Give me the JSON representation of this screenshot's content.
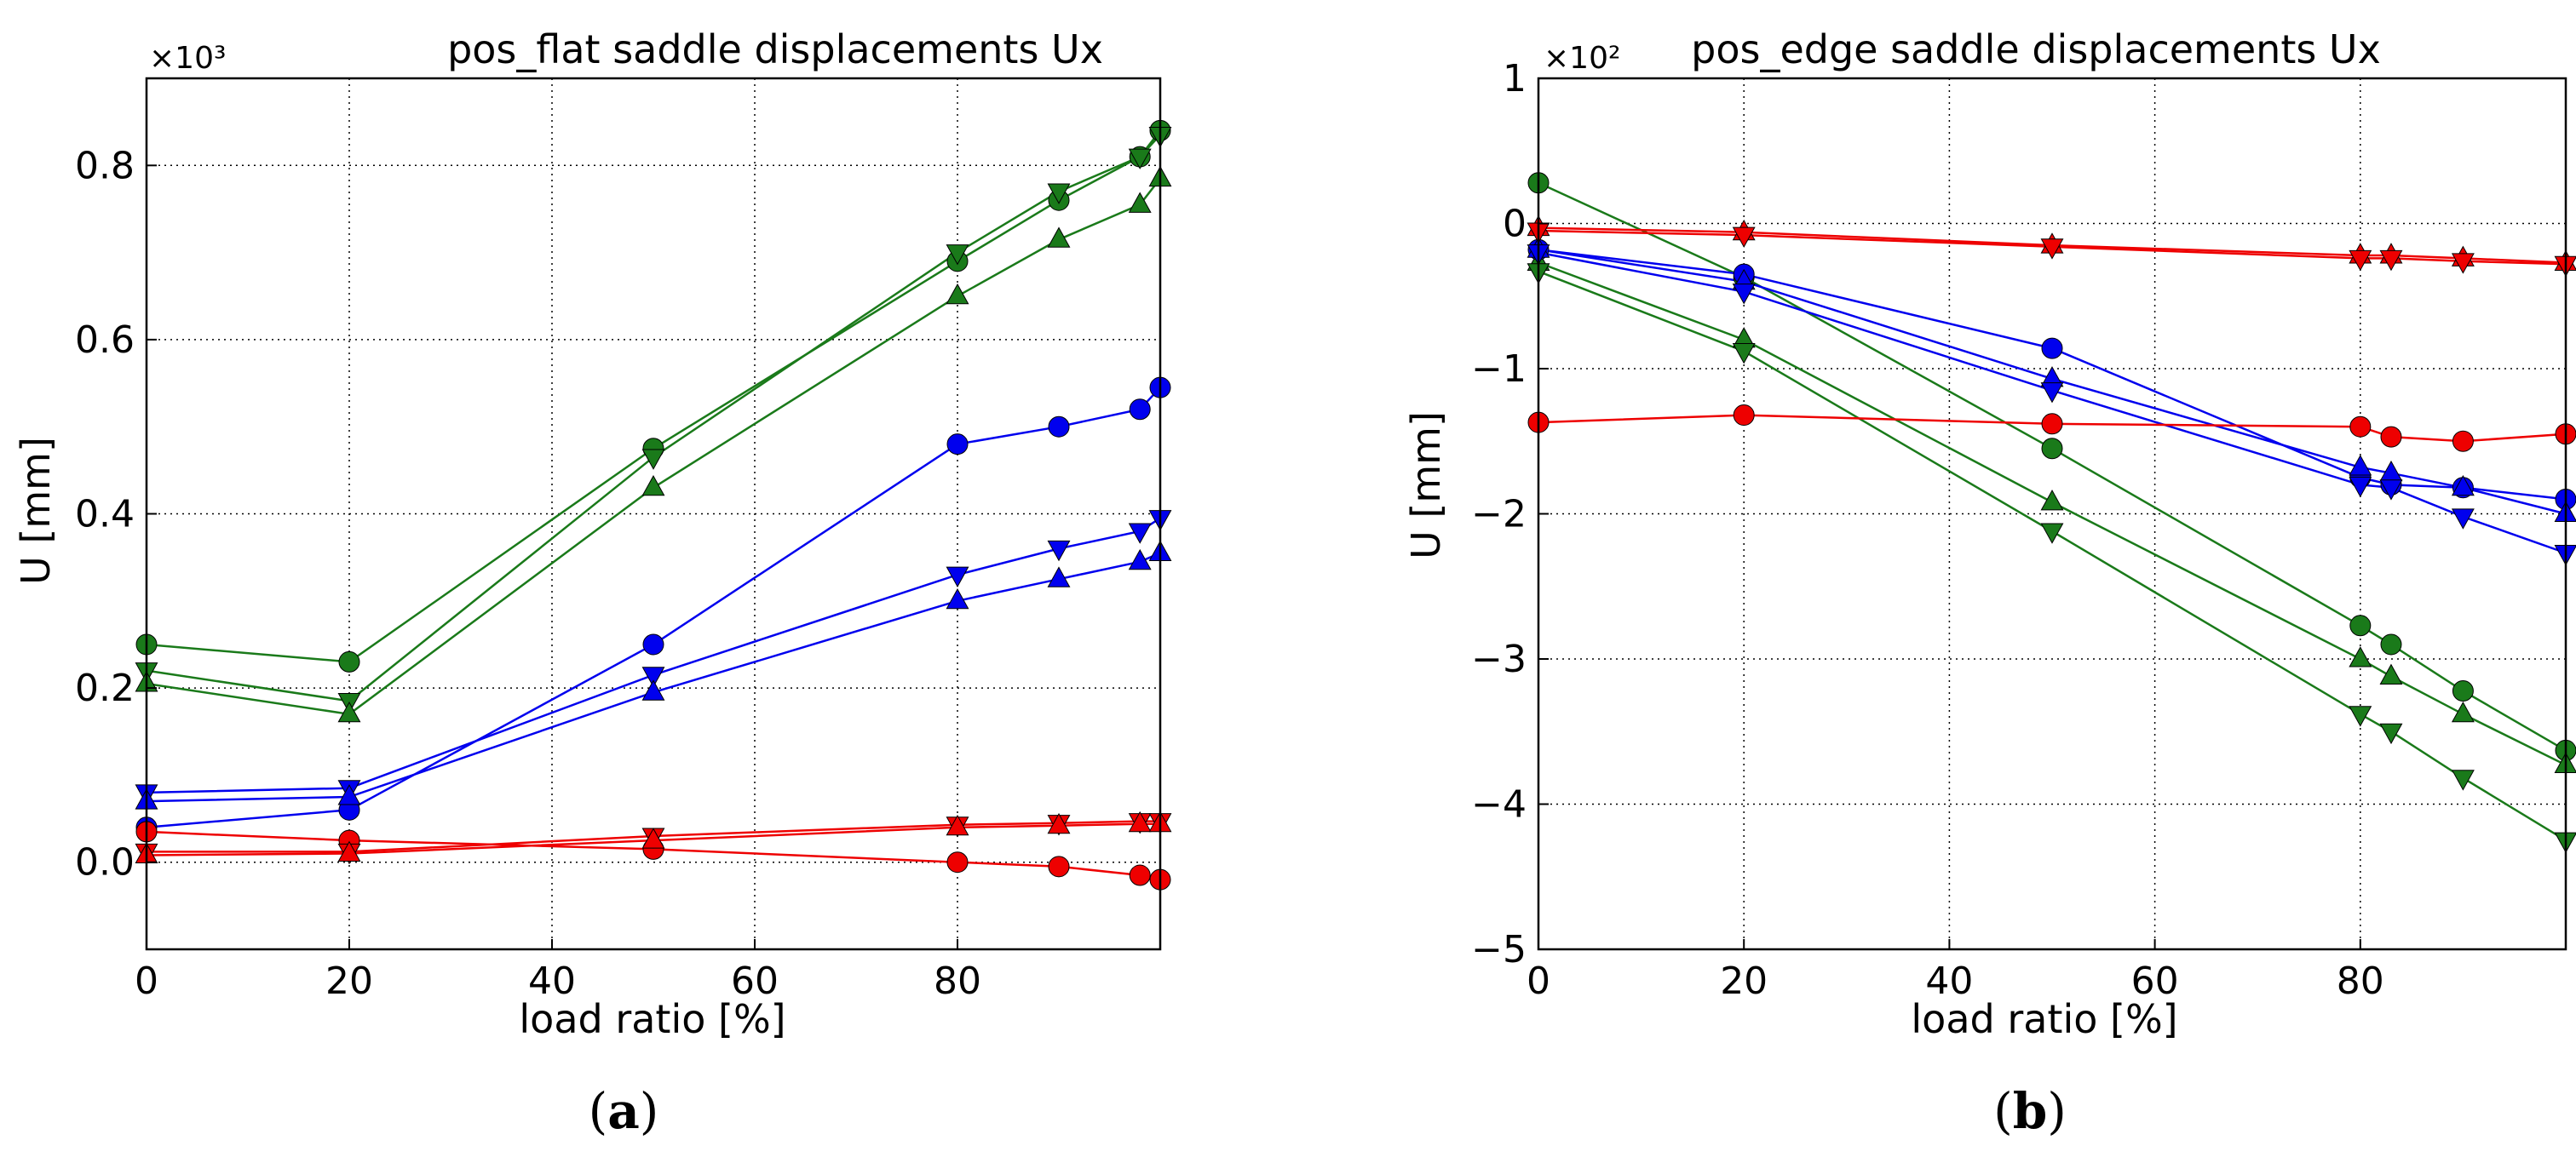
{
  "chart_data": [
    {
      "type": "line",
      "id": "a",
      "title": "pos_flat saddle displacements Ux",
      "xlabel": "load ratio [%]",
      "ylabel": "U [mm]",
      "multiplier_label": "×10³",
      "caption": {
        "open": "(",
        "letter": "a",
        "close": ")"
      },
      "xlim": [
        0,
        100
      ],
      "ylim": [
        -0.1,
        0.9
      ],
      "xticks": [
        0,
        20,
        40,
        60,
        80
      ],
      "xtick_labels": [
        "0",
        "20",
        "40",
        "60",
        "80"
      ],
      "yticks": [
        0.0,
        0.2,
        0.4,
        0.6,
        0.8
      ],
      "ytick_labels": [
        "0.0",
        "0.2",
        "0.4",
        "0.6",
        "0.8"
      ],
      "grid": true,
      "x": [
        0,
        20,
        50,
        80,
        90,
        98,
        100
      ],
      "series": [
        {
          "name": "green circle",
          "color": "#1a7a1a",
          "marker": "circle",
          "values": [
            0.25,
            0.23,
            0.475,
            0.69,
            0.76,
            0.81,
            0.84
          ]
        },
        {
          "name": "green down-triangle",
          "color": "#1a7a1a",
          "marker": "tri-down",
          "values": [
            0.22,
            0.185,
            0.465,
            0.7,
            0.77,
            0.81,
            0.835
          ]
        },
        {
          "name": "green up-triangle",
          "color": "#1a7a1a",
          "marker": "tri-up",
          "values": [
            0.205,
            0.17,
            0.43,
            0.65,
            0.715,
            0.755,
            0.785
          ]
        },
        {
          "name": "blue circle",
          "color": "#0000ee",
          "marker": "circle",
          "values": [
            0.04,
            0.06,
            0.25,
            0.48,
            0.5,
            0.52,
            0.545
          ]
        },
        {
          "name": "blue down-triangle",
          "color": "#0000ee",
          "marker": "tri-down",
          "values": [
            0.08,
            0.085,
            0.215,
            0.33,
            0.36,
            0.38,
            0.395
          ]
        },
        {
          "name": "blue up-triangle",
          "color": "#0000ee",
          "marker": "tri-up",
          "values": [
            0.07,
            0.075,
            0.195,
            0.3,
            0.325,
            0.345,
            0.355
          ]
        },
        {
          "name": "red circle",
          "color": "#ee0000",
          "marker": "circle",
          "values": [
            0.035,
            0.025,
            0.015,
            0.0,
            -0.005,
            -0.015,
            -0.02
          ]
        },
        {
          "name": "red down-triangle",
          "color": "#ee0000",
          "marker": "tri-down",
          "values": [
            0.012,
            0.012,
            0.03,
            0.043,
            0.045,
            0.047,
            0.047
          ]
        },
        {
          "name": "red up-triangle",
          "color": "#ee0000",
          "marker": "tri-up",
          "values": [
            0.008,
            0.01,
            0.025,
            0.04,
            0.042,
            0.044,
            0.044
          ]
        }
      ]
    },
    {
      "type": "line",
      "id": "b",
      "title": "pos_edge saddle displacements Ux",
      "xlabel": "load ratio [%]",
      "ylabel": "U [mm]",
      "multiplier_label": "×10²",
      "caption": {
        "open": "(",
        "letter": "b",
        "close": ")"
      },
      "xlim": [
        0,
        100
      ],
      "ylim": [
        -5,
        1
      ],
      "xticks": [
        0,
        20,
        40,
        60,
        80
      ],
      "xtick_labels": [
        "0",
        "20",
        "40",
        "60",
        "80"
      ],
      "yticks": [
        -5,
        -4,
        -3,
        -2,
        -1,
        0,
        1
      ],
      "ytick_labels": [
        "−5",
        "−4",
        "−3",
        "−2",
        "−1",
        "0",
        "1"
      ],
      "grid": true,
      "x": [
        0,
        20,
        50,
        80,
        83,
        90,
        100
      ],
      "series": [
        {
          "name": "green circle",
          "color": "#1a7a1a",
          "marker": "circle",
          "values": [
            0.28,
            -0.37,
            -1.55,
            -2.77,
            -2.9,
            -3.22,
            -3.63
          ]
        },
        {
          "name": "green up-triangle",
          "color": "#1a7a1a",
          "marker": "tri-up",
          "values": [
            -0.27,
            -0.8,
            -1.92,
            -3.0,
            -3.12,
            -3.38,
            -3.73
          ]
        },
        {
          "name": "green down-triangle",
          "color": "#1a7a1a",
          "marker": "tri-down",
          "values": [
            -0.33,
            -0.88,
            -2.12,
            -3.38,
            -3.5,
            -3.82,
            -4.25
          ]
        },
        {
          "name": "blue circle",
          "color": "#0000ee",
          "marker": "circle",
          "values": [
            -0.18,
            -0.35,
            -0.86,
            -1.75,
            -1.8,
            -1.82,
            -1.9
          ]
        },
        {
          "name": "blue up-triangle",
          "color": "#0000ee",
          "marker": "tri-up",
          "values": [
            -0.18,
            -0.4,
            -1.07,
            -1.68,
            -1.72,
            -1.82,
            -2.0
          ]
        },
        {
          "name": "blue down-triangle",
          "color": "#0000ee",
          "marker": "tri-down",
          "values": [
            -0.2,
            -0.47,
            -1.15,
            -1.8,
            -1.82,
            -2.02,
            -2.27
          ]
        },
        {
          "name": "red circle",
          "color": "#ee0000",
          "marker": "circle",
          "values": [
            -1.37,
            -1.32,
            -1.38,
            -1.4,
            -1.47,
            -1.5,
            -1.45
          ]
        },
        {
          "name": "red up-triangle",
          "color": "#ee0000",
          "marker": "tri-up",
          "values": [
            -0.03,
            -0.06,
            -0.15,
            -0.22,
            -0.22,
            -0.24,
            -0.27
          ]
        },
        {
          "name": "red down-triangle",
          "color": "#ee0000",
          "marker": "tri-down",
          "values": [
            -0.05,
            -0.08,
            -0.16,
            -0.24,
            -0.24,
            -0.26,
            -0.28
          ]
        }
      ]
    }
  ]
}
